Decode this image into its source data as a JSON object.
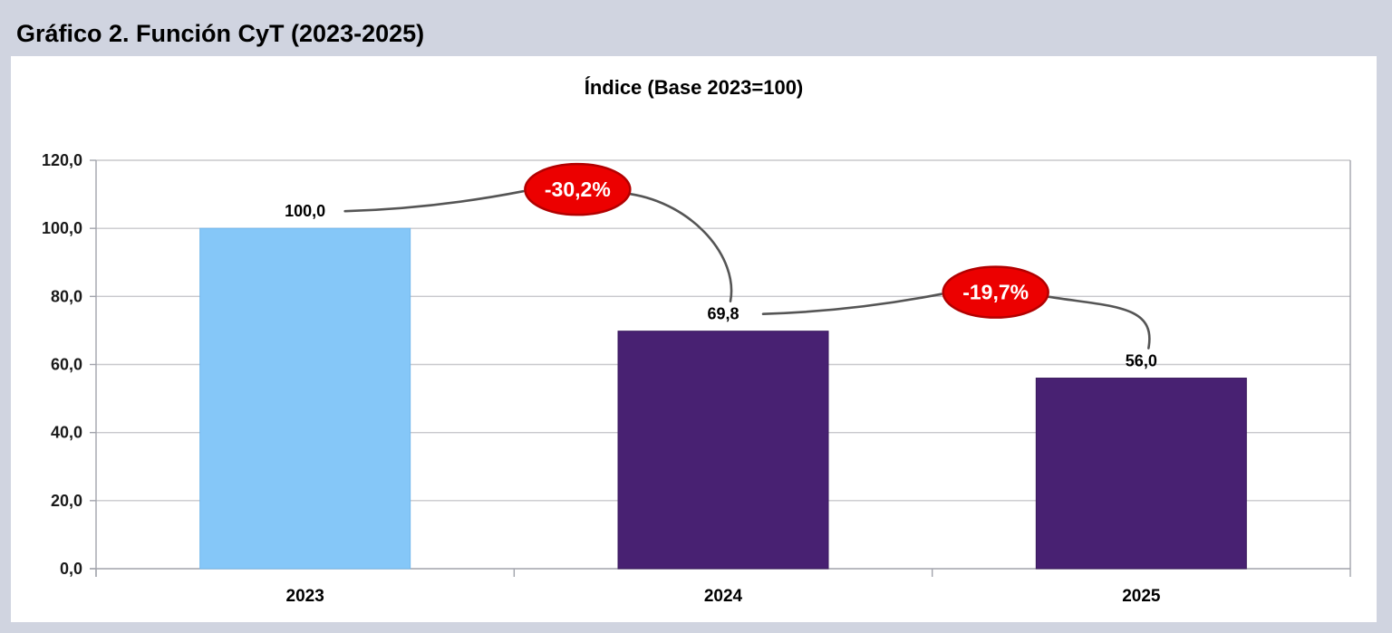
{
  "figure": {
    "heading": "Gráfico 2. Función CyT (2023-2025)"
  },
  "chart_data": {
    "type": "bar",
    "title": "Índice (Base 2023=100)",
    "categories": [
      "2023",
      "2024",
      "2025"
    ],
    "values": [
      100.0,
      69.8,
      56.0
    ],
    "value_labels": [
      "100,0",
      "69,8",
      "56,0"
    ],
    "bar_colors": [
      "#85C7F8",
      "#482172",
      "#482172"
    ],
    "bar_border_colors": [
      "#74B8EC",
      "#3A1A5C",
      "#3A1A5C"
    ],
    "xlabel": "",
    "ylabel": "",
    "ylim": [
      0,
      120
    ],
    "y_ticks": [
      0,
      20,
      40,
      60,
      80,
      100,
      120
    ],
    "y_tick_labels": [
      "0,0",
      "20,0",
      "40,0",
      "60,0",
      "80,0",
      "100,0",
      "120,0"
    ],
    "grid": true,
    "legend": "none",
    "annotations": [
      {
        "label": "-30,2%",
        "from": "2023",
        "to": "2024",
        "shape": "ellipse",
        "fill": "#EC0000",
        "border": "#B20000",
        "text_color": "#FFFFFF"
      },
      {
        "label": "-19,7%",
        "from": "2024",
        "to": "2025",
        "shape": "ellipse",
        "fill": "#EC0000",
        "border": "#B20000",
        "text_color": "#FFFFFF"
      }
    ],
    "connector_color": "#555555"
  },
  "colors": {
    "background": "#D0D4E0",
    "panel": "#FFFFFF",
    "gridline": "#C8C8CC",
    "axis": "#A2A4AC",
    "text": "#000000",
    "tick_text": "#1A1A1A"
  }
}
